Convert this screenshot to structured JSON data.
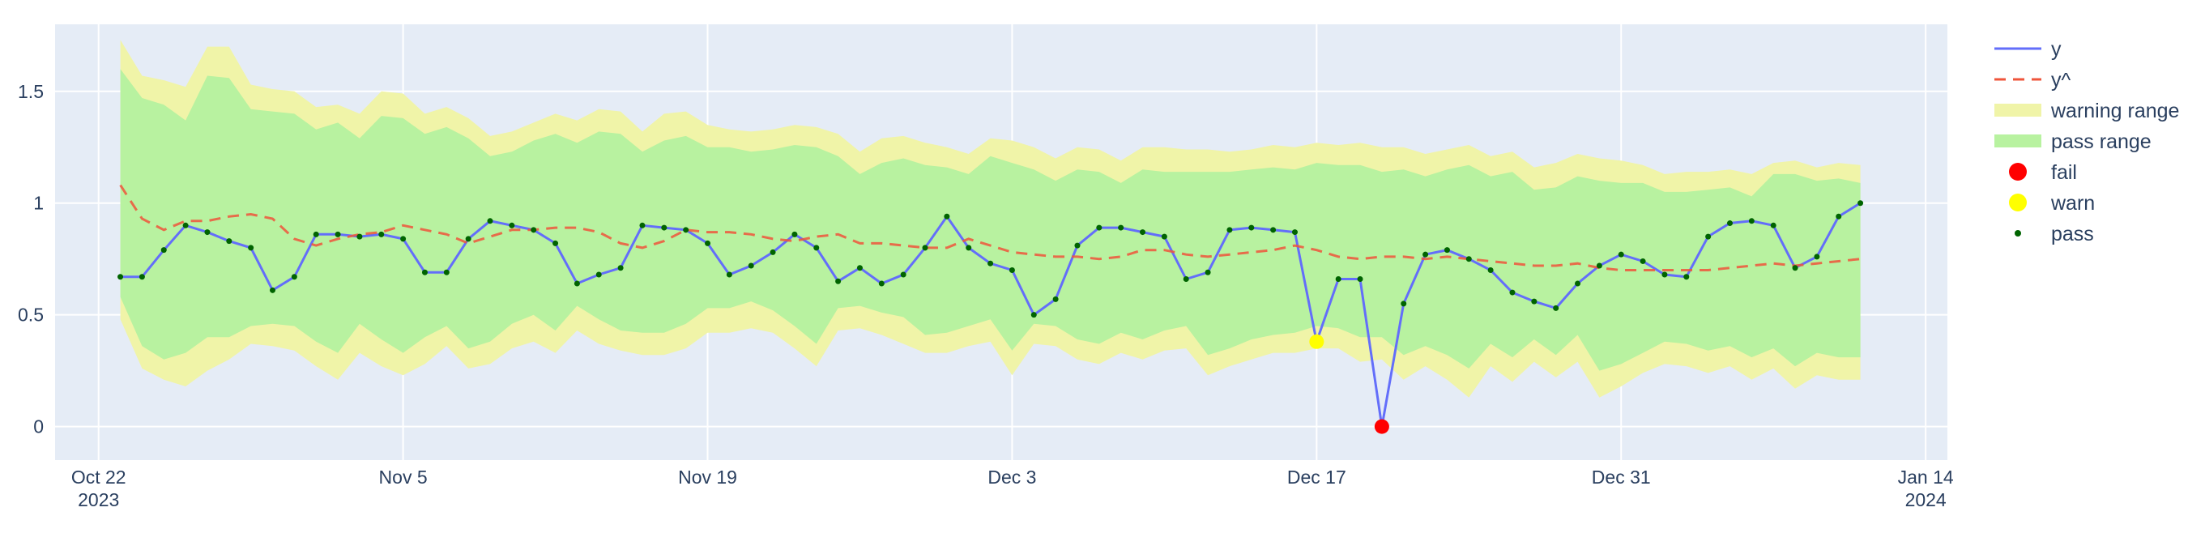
{
  "chart_data": {
    "type": "line",
    "title": "",
    "xlabel": "",
    "ylabel": "",
    "x_range": [
      "2023-10-20",
      "2024-01-15"
    ],
    "ylim": [
      -0.15,
      1.8
    ],
    "y_ticks": [
      0,
      0.5,
      1,
      1.5
    ],
    "y_tick_labels": [
      "0",
      "0.5",
      "1",
      "1.5"
    ],
    "x_ticks": [
      {
        "date": "2023-10-22",
        "label": "Oct 22",
        "year": "2023"
      },
      {
        "date": "2023-11-05",
        "label": "Nov 5",
        "year": ""
      },
      {
        "date": "2023-11-19",
        "label": "Nov 19",
        "year": ""
      },
      {
        "date": "2023-12-03",
        "label": "Dec 3",
        "year": ""
      },
      {
        "date": "2023-12-17",
        "label": "Dec 17",
        "year": ""
      },
      {
        "date": "2023-12-31",
        "label": "Dec 31",
        "year": ""
      },
      {
        "date": "2024-01-14",
        "label": "Jan 14",
        "year": "2024"
      }
    ],
    "grid": true,
    "legend_position": "right",
    "colors": {
      "plot_bg": "#e5ecf6",
      "grid": "#ffffff",
      "y": "#636efa",
      "yhat": "#ef553b",
      "warning": "#f0f4a8",
      "pass": "#b8f2a0",
      "fail": "#ff0000",
      "warn": "#ffff00",
      "pass_marker": "#006400"
    },
    "series": [
      {
        "name": "y",
        "points": [
          [
            "2023-10-23",
            0.67
          ],
          [
            "2023-10-24",
            0.67
          ],
          [
            "2023-10-25",
            0.79
          ],
          [
            "2023-10-26",
            0.9
          ],
          [
            "2023-10-27",
            0.87
          ],
          [
            "2023-10-28",
            0.83
          ],
          [
            "2023-10-29",
            0.8
          ],
          [
            "2023-10-30",
            0.61
          ],
          [
            "2023-10-31",
            0.67
          ],
          [
            "2023-11-01",
            0.86
          ],
          [
            "2023-11-02",
            0.86
          ],
          [
            "2023-11-03",
            0.85
          ],
          [
            "2023-11-04",
            0.86
          ],
          [
            "2023-11-05",
            0.84
          ],
          [
            "2023-11-06",
            0.69
          ],
          [
            "2023-11-07",
            0.69
          ],
          [
            "2023-11-08",
            0.84
          ],
          [
            "2023-11-09",
            0.92
          ],
          [
            "2023-11-10",
            0.9
          ],
          [
            "2023-11-11",
            0.88
          ],
          [
            "2023-11-12",
            0.82
          ],
          [
            "2023-11-13",
            0.64
          ],
          [
            "2023-11-14",
            0.68
          ],
          [
            "2023-11-15",
            0.71
          ],
          [
            "2023-11-16",
            0.9
          ],
          [
            "2023-11-17",
            0.89
          ],
          [
            "2023-11-18",
            0.88
          ],
          [
            "2023-11-19",
            0.82
          ],
          [
            "2023-11-20",
            0.68
          ],
          [
            "2023-11-21",
            0.72
          ],
          [
            "2023-11-22",
            0.78
          ],
          [
            "2023-11-23",
            0.86
          ],
          [
            "2023-11-24",
            0.8
          ],
          [
            "2023-11-25",
            0.65
          ],
          [
            "2023-11-26",
            0.71
          ],
          [
            "2023-11-27",
            0.64
          ],
          [
            "2023-11-28",
            0.68
          ],
          [
            "2023-11-29",
            0.8
          ],
          [
            "2023-11-30",
            0.94
          ],
          [
            "2023-12-01",
            0.8
          ],
          [
            "2023-12-02",
            0.73
          ],
          [
            "2023-12-03",
            0.7
          ],
          [
            "2023-12-04",
            0.5
          ],
          [
            "2023-12-05",
            0.57
          ],
          [
            "2023-12-06",
            0.81
          ],
          [
            "2023-12-07",
            0.89
          ],
          [
            "2023-12-08",
            0.89
          ],
          [
            "2023-12-09",
            0.87
          ],
          [
            "2023-12-10",
            0.85
          ],
          [
            "2023-12-11",
            0.66
          ],
          [
            "2023-12-12",
            0.69
          ],
          [
            "2023-12-13",
            0.88
          ],
          [
            "2023-12-14",
            0.89
          ],
          [
            "2023-12-15",
            0.88
          ],
          [
            "2023-12-16",
            0.87
          ],
          [
            "2023-12-17",
            0.38
          ],
          [
            "2023-12-18",
            0.66
          ],
          [
            "2023-12-19",
            0.66
          ],
          [
            "2023-12-20",
            0.0
          ],
          [
            "2023-12-21",
            0.55
          ],
          [
            "2023-12-22",
            0.77
          ],
          [
            "2023-12-23",
            0.79
          ],
          [
            "2023-12-24",
            0.75
          ],
          [
            "2023-12-25",
            0.7
          ],
          [
            "2023-12-26",
            0.6
          ],
          [
            "2023-12-27",
            0.56
          ],
          [
            "2023-12-28",
            0.53
          ],
          [
            "2023-12-29",
            0.64
          ],
          [
            "2023-12-30",
            0.72
          ],
          [
            "2023-12-31",
            0.77
          ],
          [
            "2024-01-01",
            0.74
          ],
          [
            "2024-01-02",
            0.68
          ],
          [
            "2024-01-03",
            0.67
          ],
          [
            "2024-01-04",
            0.85
          ],
          [
            "2024-01-05",
            0.91
          ],
          [
            "2024-01-06",
            0.92
          ],
          [
            "2024-01-07",
            0.9
          ],
          [
            "2024-01-08",
            0.71
          ],
          [
            "2024-01-09",
            0.76
          ],
          [
            "2024-01-10",
            0.94
          ],
          [
            "2024-01-11",
            1.0
          ]
        ]
      },
      {
        "name": "y^",
        "points": [
          [
            "2023-10-23",
            1.08
          ],
          [
            "2023-10-24",
            0.93
          ],
          [
            "2023-10-25",
            0.88
          ],
          [
            "2023-10-26",
            0.92
          ],
          [
            "2023-10-27",
            0.92
          ],
          [
            "2023-10-28",
            0.94
          ],
          [
            "2023-10-29",
            0.95
          ],
          [
            "2023-10-30",
            0.93
          ],
          [
            "2023-10-31",
            0.84
          ],
          [
            "2023-11-01",
            0.81
          ],
          [
            "2023-11-02",
            0.84
          ],
          [
            "2023-11-03",
            0.86
          ],
          [
            "2023-11-04",
            0.87
          ],
          [
            "2023-11-05",
            0.9
          ],
          [
            "2023-11-06",
            0.88
          ],
          [
            "2023-11-07",
            0.86
          ],
          [
            "2023-11-08",
            0.82
          ],
          [
            "2023-11-09",
            0.85
          ],
          [
            "2023-11-10",
            0.88
          ],
          [
            "2023-11-11",
            0.88
          ],
          [
            "2023-11-12",
            0.89
          ],
          [
            "2023-11-13",
            0.89
          ],
          [
            "2023-11-14",
            0.87
          ],
          [
            "2023-11-15",
            0.82
          ],
          [
            "2023-11-16",
            0.8
          ],
          [
            "2023-11-17",
            0.83
          ],
          [
            "2023-11-18",
            0.88
          ],
          [
            "2023-11-19",
            0.87
          ],
          [
            "2023-11-20",
            0.87
          ],
          [
            "2023-11-21",
            0.86
          ],
          [
            "2023-11-22",
            0.84
          ],
          [
            "2023-11-23",
            0.83
          ],
          [
            "2023-11-24",
            0.85
          ],
          [
            "2023-11-25",
            0.86
          ],
          [
            "2023-11-26",
            0.82
          ],
          [
            "2023-11-27",
            0.82
          ],
          [
            "2023-11-28",
            0.81
          ],
          [
            "2023-11-29",
            0.8
          ],
          [
            "2023-11-30",
            0.8
          ],
          [
            "2023-12-01",
            0.84
          ],
          [
            "2023-12-02",
            0.81
          ],
          [
            "2023-12-03",
            0.78
          ],
          [
            "2023-12-04",
            0.77
          ],
          [
            "2023-12-05",
            0.76
          ],
          [
            "2023-12-06",
            0.76
          ],
          [
            "2023-12-07",
            0.75
          ],
          [
            "2023-12-08",
            0.76
          ],
          [
            "2023-12-09",
            0.79
          ],
          [
            "2023-12-10",
            0.79
          ],
          [
            "2023-12-11",
            0.77
          ],
          [
            "2023-12-12",
            0.76
          ],
          [
            "2023-12-13",
            0.77
          ],
          [
            "2023-12-14",
            0.78
          ],
          [
            "2023-12-15",
            0.79
          ],
          [
            "2023-12-16",
            0.81
          ],
          [
            "2023-12-17",
            0.79
          ],
          [
            "2023-12-18",
            0.76
          ],
          [
            "2023-12-19",
            0.75
          ],
          [
            "2023-12-20",
            0.76
          ],
          [
            "2023-12-21",
            0.76
          ],
          [
            "2023-12-22",
            0.75
          ],
          [
            "2023-12-23",
            0.76
          ],
          [
            "2023-12-24",
            0.75
          ],
          [
            "2023-12-25",
            0.74
          ],
          [
            "2023-12-26",
            0.73
          ],
          [
            "2023-12-27",
            0.72
          ],
          [
            "2023-12-28",
            0.72
          ],
          [
            "2023-12-29",
            0.73
          ],
          [
            "2023-12-30",
            0.71
          ],
          [
            "2023-12-31",
            0.7
          ],
          [
            "2024-01-01",
            0.7
          ],
          [
            "2024-01-02",
            0.7
          ],
          [
            "2024-01-03",
            0.7
          ],
          [
            "2024-01-04",
            0.7
          ],
          [
            "2024-01-05",
            0.71
          ],
          [
            "2024-01-06",
            0.72
          ],
          [
            "2024-01-07",
            0.73
          ],
          [
            "2024-01-08",
            0.72
          ],
          [
            "2024-01-09",
            0.73
          ],
          [
            "2024-01-10",
            0.74
          ],
          [
            "2024-01-11",
            0.75
          ]
        ]
      }
    ],
    "bands": {
      "warning_upper": [
        1.73,
        1.57,
        1.55,
        1.52,
        1.7,
        1.7,
        1.53,
        1.51,
        1.5,
        1.43,
        1.44,
        1.4,
        1.5,
        1.49,
        1.4,
        1.43,
        1.38,
        1.3,
        1.32,
        1.36,
        1.4,
        1.37,
        1.42,
        1.41,
        1.32,
        1.4,
        1.41,
        1.35,
        1.33,
        1.32,
        1.33,
        1.35,
        1.34,
        1.31,
        1.23,
        1.29,
        1.3,
        1.27,
        1.25,
        1.22,
        1.29,
        1.28,
        1.25,
        1.2,
        1.25,
        1.24,
        1.19,
        1.25,
        1.25,
        1.24,
        1.24,
        1.23,
        1.24,
        1.26,
        1.25,
        1.27,
        1.26,
        1.27,
        1.25,
        1.25,
        1.22,
        1.24,
        1.26,
        1.21,
        1.23,
        1.16,
        1.18,
        1.22,
        1.2,
        1.19,
        1.17,
        1.13,
        1.14,
        1.14,
        1.15,
        1.13,
        1.18,
        1.19,
        1.16,
        1.18,
        1.17,
        1.27
      ],
      "pass_upper": [
        1.6,
        1.47,
        1.44,
        1.37,
        1.57,
        1.56,
        1.42,
        1.41,
        1.4,
        1.33,
        1.36,
        1.29,
        1.39,
        1.38,
        1.31,
        1.34,
        1.29,
        1.21,
        1.23,
        1.28,
        1.31,
        1.27,
        1.32,
        1.31,
        1.23,
        1.28,
        1.3,
        1.25,
        1.25,
        1.23,
        1.24,
        1.26,
        1.25,
        1.21,
        1.13,
        1.18,
        1.2,
        1.17,
        1.16,
        1.13,
        1.21,
        1.18,
        1.15,
        1.1,
        1.15,
        1.14,
        1.09,
        1.15,
        1.14,
        1.14,
        1.14,
        1.14,
        1.15,
        1.16,
        1.15,
        1.18,
        1.17,
        1.17,
        1.14,
        1.15,
        1.12,
        1.15,
        1.17,
        1.12,
        1.14,
        1.06,
        1.07,
        1.12,
        1.1,
        1.09,
        1.09,
        1.05,
        1.05,
        1.06,
        1.07,
        1.03,
        1.13,
        1.13,
        1.1,
        1.11,
        1.09,
        1.17
      ],
      "pass_lower": [
        0.58,
        0.36,
        0.3,
        0.33,
        0.4,
        0.4,
        0.45,
        0.46,
        0.45,
        0.38,
        0.33,
        0.46,
        0.39,
        0.33,
        0.4,
        0.45,
        0.35,
        0.38,
        0.46,
        0.5,
        0.43,
        0.54,
        0.48,
        0.43,
        0.42,
        0.42,
        0.46,
        0.53,
        0.53,
        0.56,
        0.52,
        0.45,
        0.37,
        0.53,
        0.54,
        0.51,
        0.49,
        0.41,
        0.42,
        0.45,
        0.48,
        0.34,
        0.46,
        0.45,
        0.39,
        0.37,
        0.42,
        0.39,
        0.43,
        0.45,
        0.32,
        0.35,
        0.39,
        0.41,
        0.42,
        0.45,
        0.44,
        0.4,
        0.4,
        0.32,
        0.36,
        0.32,
        0.26,
        0.37,
        0.31,
        0.39,
        0.32,
        0.41,
        0.25,
        0.28,
        0.33,
        0.38,
        0.37,
        0.34,
        0.36,
        0.31,
        0.35,
        0.27,
        0.33,
        0.31,
        0.31,
        0.32
      ],
      "warning_lower": [
        0.48,
        0.26,
        0.21,
        0.18,
        0.25,
        0.3,
        0.37,
        0.36,
        0.34,
        0.27,
        0.21,
        0.33,
        0.27,
        0.23,
        0.28,
        0.36,
        0.26,
        0.28,
        0.35,
        0.38,
        0.33,
        0.43,
        0.37,
        0.34,
        0.32,
        0.32,
        0.35,
        0.42,
        0.42,
        0.44,
        0.42,
        0.35,
        0.27,
        0.43,
        0.44,
        0.41,
        0.37,
        0.33,
        0.33,
        0.36,
        0.38,
        0.23,
        0.37,
        0.36,
        0.3,
        0.28,
        0.33,
        0.3,
        0.34,
        0.35,
        0.23,
        0.27,
        0.3,
        0.33,
        0.33,
        0.35,
        0.35,
        0.29,
        0.3,
        0.21,
        0.27,
        0.21,
        0.13,
        0.27,
        0.2,
        0.29,
        0.22,
        0.29,
        0.13,
        0.18,
        0.24,
        0.28,
        0.27,
        0.24,
        0.27,
        0.21,
        0.26,
        0.17,
        0.23,
        0.21,
        0.21,
        0.24
      ]
    },
    "markers": {
      "fail": [
        [
          "2023-12-20",
          0.0
        ]
      ],
      "warn": [
        [
          "2023-12-17",
          0.38
        ]
      ]
    },
    "legend": [
      {
        "key": "y",
        "label": "y"
      },
      {
        "key": "yhat",
        "label": "y^"
      },
      {
        "key": "warning",
        "label": "warning range"
      },
      {
        "key": "pass",
        "label": "pass range"
      },
      {
        "key": "fail",
        "label": "fail"
      },
      {
        "key": "warn",
        "label": "warn"
      },
      {
        "key": "pass_marker",
        "label": "pass"
      }
    ]
  }
}
